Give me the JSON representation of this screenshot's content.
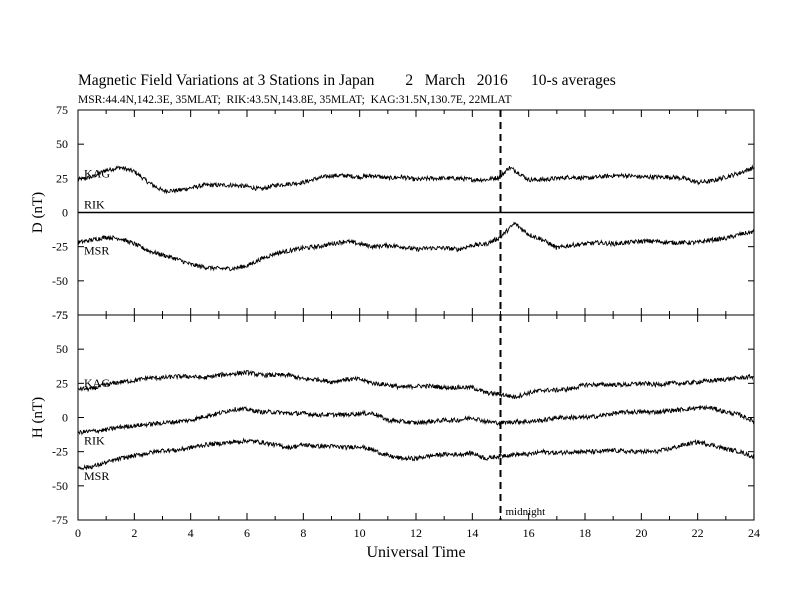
{
  "page": {
    "title": "Magnetic Field Variations at 3 Stations in Japan        2   March   2016      10-s averages",
    "subtitle": "MSR:44.4N,142.3E, 35MLAT;  RIK:43.5N,143.8E, 35MLAT;  KAG:31.5N,130.7E, 22MLAT"
  },
  "chart_data": [
    {
      "type": "line",
      "panel": "D",
      "ylabel": "D (nT)",
      "xlim": [
        0,
        24
      ],
      "ylim": [
        -75,
        75
      ],
      "yticks": [
        -75,
        -50,
        -25,
        0,
        25,
        50,
        75
      ],
      "series": [
        {
          "name": "KAG",
          "x": [
            0,
            0.5,
            1,
            1.5,
            2,
            2.5,
            3,
            3.5,
            4,
            4.5,
            5,
            5.5,
            6,
            6.5,
            7,
            7.5,
            8,
            8.5,
            9,
            9.5,
            10,
            10.5,
            11,
            11.5,
            12,
            12.5,
            13,
            13.5,
            14,
            14.5,
            15,
            15.3,
            15.5,
            16,
            16.5,
            17,
            17.5,
            18,
            18.5,
            19,
            19.5,
            20,
            20.5,
            21,
            21.5,
            22,
            22.5,
            23,
            23.5,
            24
          ],
          "y": [
            24,
            26,
            31,
            33,
            30,
            22,
            16,
            16,
            18,
            20,
            20,
            20,
            19,
            17,
            20,
            21,
            22,
            25,
            27,
            27,
            26,
            27,
            25,
            26,
            24,
            25,
            25,
            25,
            24,
            24,
            26,
            33,
            31,
            24,
            24,
            25,
            26,
            25,
            26,
            27,
            27,
            26,
            26,
            26,
            25,
            22,
            23,
            26,
            29,
            33
          ]
        },
        {
          "name": "RIK",
          "x": [
            0,
            24
          ],
          "y": [
            0,
            0
          ]
        },
        {
          "name": "MSR",
          "x": [
            0,
            0.5,
            1,
            1.5,
            2,
            2.5,
            3,
            3.5,
            4,
            4.5,
            5,
            5.5,
            6,
            6.5,
            7,
            7.5,
            8,
            8.5,
            9,
            9.5,
            10,
            10.5,
            11,
            11.5,
            12,
            12.5,
            13,
            13.5,
            14,
            14.5,
            15,
            15.3,
            15.5,
            16,
            16.5,
            17,
            17.5,
            18,
            18.5,
            19,
            19.5,
            20,
            20.5,
            21,
            21.5,
            22,
            22.5,
            23,
            23.5,
            24
          ],
          "y": [
            -22,
            -20,
            -18,
            -19,
            -23,
            -28,
            -31,
            -34,
            -38,
            -40,
            -41,
            -41,
            -39,
            -34,
            -30,
            -28,
            -26,
            -25,
            -23,
            -21,
            -23,
            -25,
            -24,
            -25,
            -27,
            -26,
            -26,
            -27,
            -24,
            -23,
            -18,
            -12,
            -8,
            -16,
            -20,
            -26,
            -24,
            -23,
            -22,
            -23,
            -22,
            -21,
            -21,
            -22,
            -22,
            -22,
            -20,
            -19,
            -16,
            -14
          ]
        }
      ]
    },
    {
      "type": "line",
      "panel": "H",
      "ylabel": "H (nT)",
      "xlabel": "Universal Time",
      "xlim": [
        0,
        24
      ],
      "ylim": [
        -75,
        75
      ],
      "xticks": [
        0,
        2,
        4,
        6,
        8,
        10,
        12,
        14,
        16,
        18,
        20,
        22,
        24
      ],
      "yticks": [
        -75,
        -50,
        -25,
        0,
        25,
        50,
        75
      ],
      "series": [
        {
          "name": "KAG",
          "x": [
            0,
            0.5,
            1,
            1.5,
            2,
            2.5,
            3,
            3.5,
            4,
            4.5,
            5,
            5.5,
            6,
            6.5,
            7,
            7.5,
            8,
            8.5,
            9,
            9.5,
            10,
            10.5,
            11,
            11.5,
            12,
            12.5,
            13,
            13.5,
            14,
            14.5,
            15,
            15.5,
            16,
            16.5,
            17,
            17.5,
            18,
            18.5,
            19,
            19.5,
            20,
            20.5,
            21,
            21.5,
            22,
            22.5,
            23,
            23.5,
            24
          ],
          "y": [
            21,
            21,
            24,
            26,
            27,
            29,
            29,
            30,
            30,
            29,
            31,
            32,
            33,
            31,
            31,
            31,
            28,
            28,
            26,
            28,
            28,
            25,
            24,
            22,
            23,
            23,
            22,
            22,
            22,
            18,
            17,
            15,
            18,
            20,
            20,
            21,
            24,
            24,
            24,
            24,
            25,
            24,
            25,
            25,
            26,
            27,
            28,
            29,
            30
          ]
        },
        {
          "name": "RIK",
          "x": [
            0,
            0.5,
            1,
            1.5,
            2,
            2.5,
            3,
            3.5,
            4,
            4.5,
            5,
            5.5,
            6,
            6.5,
            7,
            7.5,
            8,
            8.5,
            9,
            9.5,
            10,
            10.5,
            11,
            11.5,
            12,
            12.5,
            13,
            13.5,
            14,
            14.5,
            15,
            15.5,
            16,
            16.5,
            17,
            17.5,
            18,
            18.5,
            19,
            19.5,
            20,
            20.5,
            21,
            21.5,
            22,
            22.5,
            23,
            23.5,
            24
          ],
          "y": [
            -11,
            -10,
            -9,
            -7,
            -6,
            -5,
            -4,
            -3,
            -2,
            1,
            3,
            6,
            6,
            4,
            4,
            3,
            3,
            2,
            2,
            2,
            3,
            3,
            -2,
            -3,
            -4,
            -3,
            -2,
            -2,
            0,
            -3,
            -4,
            -3,
            -3,
            -2,
            0,
            0,
            0,
            1,
            3,
            4,
            4,
            4,
            5,
            6,
            7,
            7,
            4,
            2,
            -3
          ]
        },
        {
          "name": "MSR",
          "x": [
            0,
            0.5,
            1,
            1.5,
            2,
            2.5,
            3,
            3.5,
            4,
            4.5,
            5,
            5.5,
            6,
            6.5,
            7,
            7.5,
            8,
            8.5,
            9,
            9.5,
            10,
            10.5,
            11,
            11.5,
            12,
            12.5,
            13,
            13.5,
            14,
            14.5,
            15,
            15.5,
            16,
            16.5,
            17,
            17.5,
            18,
            18.5,
            19,
            19.5,
            20,
            20.5,
            21,
            21.5,
            22,
            22.5,
            23,
            23.5,
            24
          ],
          "y": [
            -37,
            -36,
            -33,
            -30,
            -28,
            -26,
            -24,
            -24,
            -22,
            -20,
            -19,
            -18,
            -17,
            -18,
            -20,
            -22,
            -20,
            -21,
            -21,
            -22,
            -21,
            -24,
            -28,
            -30,
            -30,
            -28,
            -27,
            -27,
            -26,
            -30,
            -28,
            -27,
            -27,
            -25,
            -26,
            -25,
            -25,
            -25,
            -24,
            -25,
            -25,
            -25,
            -23,
            -20,
            -18,
            -20,
            -23,
            -25,
            -29
          ]
        }
      ]
    }
  ],
  "annotation": {
    "midnight_x": 15,
    "midnight_label": "midnight"
  },
  "colors": {
    "line": "#000000",
    "background": "#ffffff"
  }
}
